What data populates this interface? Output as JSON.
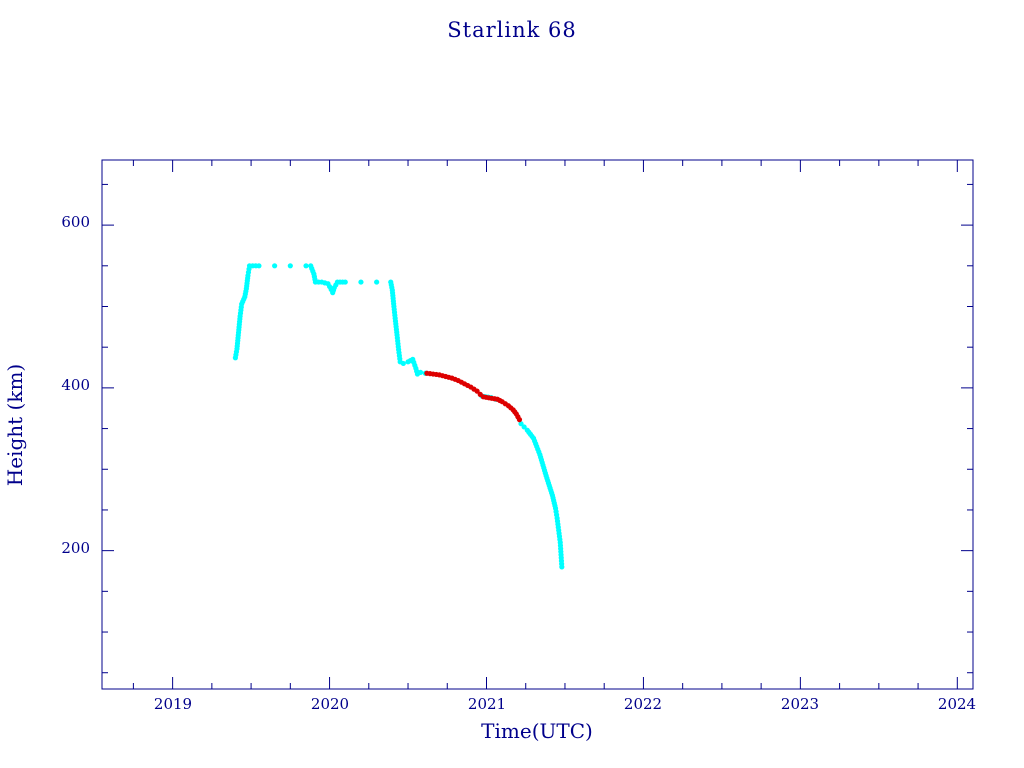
{
  "chart_data": {
    "type": "scatter",
    "title": "Starlink 68",
    "xlabel": "Time(UTC)",
    "ylabel": "Height (km)",
    "xlim": [
      2018.55,
      2024.1
    ],
    "ylim": [
      30,
      680
    ],
    "x_ticks": [
      "2019",
      "2020",
      "2021",
      "2022",
      "2023",
      "2024"
    ],
    "y_ticks": [
      "200",
      "400",
      "600"
    ],
    "colors": {
      "axis": "#00008b",
      "cyan_points": "#00ffff",
      "red_points": "#dd0000"
    },
    "series": [
      {
        "color": "#00ffff",
        "points": [
          [
            2019.4,
            437
          ],
          [
            2019.41,
            448
          ],
          [
            2019.42,
            468
          ],
          [
            2019.43,
            488
          ],
          [
            2019.44,
            503
          ],
          [
            2019.46,
            512
          ],
          [
            2019.47,
            522
          ],
          [
            2019.48,
            538
          ],
          [
            2019.49,
            550
          ],
          [
            2019.55,
            550
          ],
          [
            2019.65,
            550
          ],
          [
            2019.75,
            550
          ],
          [
            2019.85,
            550
          ],
          [
            2019.88,
            550
          ],
          [
            2019.9,
            540
          ],
          [
            2019.91,
            530
          ],
          [
            2019.95,
            530
          ],
          [
            2019.99,
            528
          ],
          [
            2020.01,
            521
          ],
          [
            2020.02,
            517
          ],
          [
            2020.03,
            523
          ],
          [
            2020.05,
            530
          ],
          [
            2020.1,
            530
          ],
          [
            2020.2,
            530
          ],
          [
            2020.3,
            530
          ],
          [
            2020.39,
            530
          ],
          [
            2020.4,
            520
          ],
          [
            2020.41,
            500
          ],
          [
            2020.42,
            482
          ],
          [
            2020.43,
            465
          ],
          [
            2020.44,
            447
          ],
          [
            2020.45,
            432
          ],
          [
            2020.47,
            430
          ],
          [
            2020.5,
            432
          ],
          [
            2020.53,
            435
          ],
          [
            2020.55,
            424
          ],
          [
            2020.56,
            417
          ],
          [
            2020.58,
            419
          ],
          [
            2020.61,
            418
          ],
          [
            2020.97,
            390
          ],
          [
            2021.03,
            388
          ],
          [
            2021.06,
            386
          ],
          [
            2021.22,
            356
          ],
          [
            2021.24,
            352
          ],
          [
            2021.26,
            348
          ],
          [
            2021.28,
            343
          ],
          [
            2021.3,
            338
          ],
          [
            2021.32,
            328
          ],
          [
            2021.34,
            318
          ],
          [
            2021.36,
            305
          ],
          [
            2021.38,
            292
          ],
          [
            2021.4,
            280
          ],
          [
            2021.42,
            268
          ],
          [
            2021.44,
            252
          ],
          [
            2021.45,
            240
          ],
          [
            2021.46,
            225
          ],
          [
            2021.47,
            210
          ],
          [
            2021.475,
            195
          ],
          [
            2021.48,
            180
          ]
        ]
      },
      {
        "color": "#dd0000",
        "points": [
          [
            2020.62,
            418
          ],
          [
            2020.66,
            417
          ],
          [
            2020.7,
            416
          ],
          [
            2020.74,
            414
          ],
          [
            2020.78,
            412
          ],
          [
            2020.82,
            409
          ],
          [
            2020.86,
            405
          ],
          [
            2020.9,
            401
          ],
          [
            2020.94,
            396
          ],
          [
            2020.96,
            392
          ],
          [
            2020.98,
            389
          ],
          [
            2021.07,
            386
          ],
          [
            2021.1,
            383
          ],
          [
            2021.14,
            378
          ],
          [
            2021.17,
            373
          ],
          [
            2021.19,
            368
          ],
          [
            2021.21,
            361
          ]
        ]
      }
    ]
  }
}
